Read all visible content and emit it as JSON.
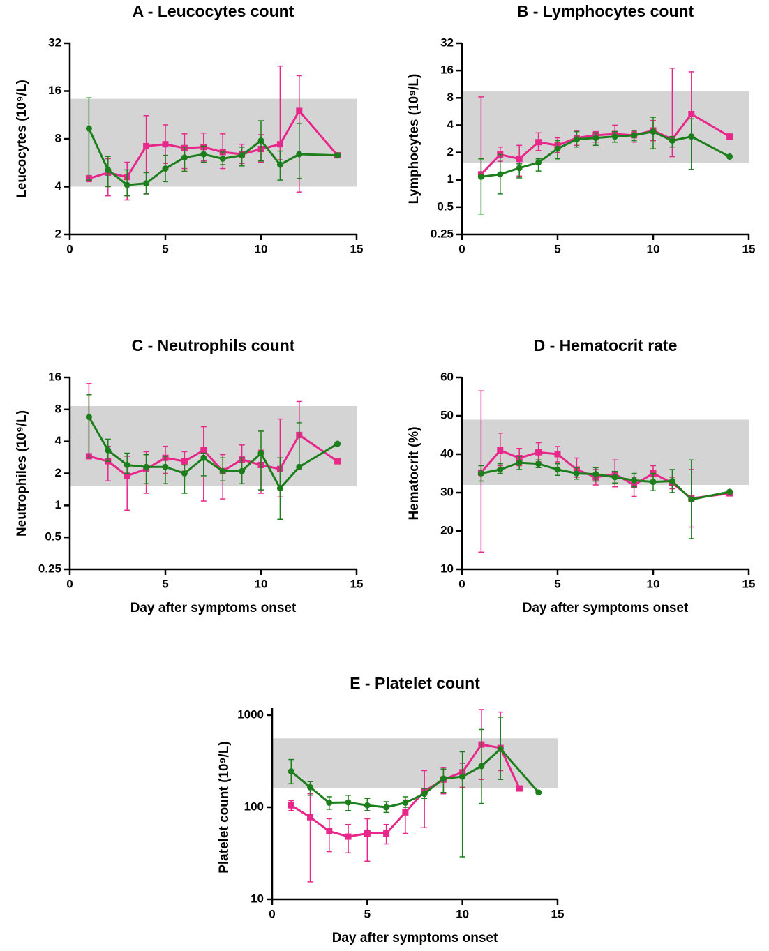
{
  "chart_data": [
    {
      "type": "line",
      "title": "A - Leucocytes count",
      "ylabel": "Leucocytes (10⁹/L)",
      "log_scale": true,
      "x": [
        1,
        2,
        3,
        4,
        5,
        6,
        7,
        8,
        9,
        10,
        11,
        12,
        14
      ],
      "xlim": [
        0,
        15
      ],
      "xticks": [
        0,
        5,
        10,
        15
      ],
      "ylim": [
        2,
        32
      ],
      "yticks": [
        2,
        4,
        8,
        16,
        32
      ],
      "band": [
        4,
        14.3
      ],
      "series": [
        {
          "color": "#e8278a",
          "marker": "square",
          "values": [
            4.5,
            4.9,
            4.6,
            7.2,
            7.4,
            7.0,
            7.1,
            6.6,
            6.4,
            6.9,
            7.4,
            12,
            6.3
          ],
          "error_low": [
            4.3,
            3.5,
            3.3,
            3.6,
            5.6,
            5.2,
            5.8,
            5.2,
            5.6,
            5.7,
            5.9,
            3.7,
            null
          ],
          "error_high": [
            4.7,
            6.0,
            5.7,
            11.2,
            9.8,
            8.6,
            8.7,
            8.6,
            7.4,
            8.5,
            23,
            20,
            null
          ]
        },
        {
          "color": "#1c7f1c",
          "marker": "circle",
          "values": [
            9.3,
            5.1,
            4.1,
            4.2,
            5.2,
            6.1,
            6.4,
            6.0,
            6.3,
            7.8,
            5.5,
            6.4,
            6.3
          ],
          "error_low": [
            4.4,
            4.0,
            3.5,
            3.6,
            4.3,
            5.0,
            5.7,
            5.5,
            5.4,
            5.8,
            4.4,
            4.5,
            null
          ],
          "error_high": [
            14.5,
            6.2,
            5.1,
            4.9,
            6.3,
            7.1,
            7.2,
            6.6,
            7.1,
            10.4,
            6.7,
            10,
            null
          ]
        }
      ]
    },
    {
      "type": "line",
      "title": "B - Lymphocytes count",
      "ylabel": "Lymphocytes (10⁹/L)",
      "log_scale": true,
      "x": [
        1,
        2,
        3,
        4,
        5,
        6,
        7,
        8,
        9,
        10,
        11,
        12,
        14
      ],
      "xlim": [
        0,
        15
      ],
      "xticks": [
        0,
        5,
        10,
        15
      ],
      "ylim": [
        0.25,
        32
      ],
      "yticks": [
        0.25,
        0.5,
        1,
        2,
        4,
        8,
        16,
        32
      ],
      "band": [
        1.53,
        9.5
      ],
      "series": [
        {
          "color": "#e8278a",
          "marker": "square",
          "values": [
            1.15,
            1.9,
            1.7,
            2.6,
            2.4,
            2.9,
            3.1,
            3.2,
            3.1,
            3.5,
            2.8,
            5.3,
            3.0
          ],
          "error_low": [
            1.1,
            1.6,
            1.1,
            2.1,
            2.0,
            2.4,
            2.6,
            2.6,
            2.6,
            2.7,
            1.8,
            1.3,
            null
          ],
          "error_high": [
            8.2,
            2.3,
            2.4,
            3.3,
            2.9,
            3.5,
            3.4,
            4.0,
            3.4,
            4.5,
            17,
            15.5,
            null
          ]
        },
        {
          "color": "#1c7f1c",
          "marker": "circle",
          "values": [
            1.08,
            1.15,
            1.35,
            1.55,
            2.2,
            2.8,
            2.9,
            3.0,
            3.1,
            3.4,
            2.7,
            3.0,
            1.8
          ],
          "error_low": [
            0.42,
            0.7,
            1.05,
            1.25,
            1.7,
            2.3,
            2.4,
            2.6,
            2.7,
            2.2,
            2.3,
            1.3,
            null
          ],
          "error_high": [
            1.7,
            1.9,
            1.5,
            1.7,
            2.7,
            3.4,
            3.3,
            3.4,
            3.5,
            4.9,
            3.0,
            4.7,
            null
          ]
        }
      ]
    },
    {
      "type": "line",
      "title": "C - Neutrophils count",
      "ylabel": "Neutrophiles (10⁹/L)",
      "xlabel": "Day after symptoms onset",
      "log_scale": true,
      "x": [
        1,
        2,
        3,
        4,
        5,
        6,
        7,
        8,
        9,
        10,
        11,
        12,
        14
      ],
      "xlim": [
        0,
        15
      ],
      "xticks": [
        0,
        5,
        10,
        15
      ],
      "ylim": [
        0.25,
        16
      ],
      "yticks": [
        0.25,
        0.5,
        1,
        2,
        4,
        8,
        16
      ],
      "band": [
        1.52,
        8.6
      ],
      "series": [
        {
          "color": "#e8278a",
          "marker": "square",
          "values": [
            2.9,
            2.6,
            1.9,
            2.2,
            2.8,
            2.6,
            3.3,
            2.1,
            2.7,
            2.4,
            2.2,
            4.6,
            2.6
          ],
          "error_low": [
            2.8,
            1.7,
            0.9,
            1.3,
            2.0,
            2.1,
            1.1,
            1.15,
            1.6,
            1.3,
            1.2,
            2.2,
            null
          ],
          "error_high": [
            14,
            3.6,
            2.9,
            3.2,
            3.6,
            3.2,
            5.5,
            3.0,
            3.7,
            3.3,
            6.5,
            9.5,
            null
          ]
        },
        {
          "color": "#1c7f1c",
          "marker": "circle",
          "values": [
            6.8,
            3.3,
            2.4,
            2.3,
            2.3,
            2.0,
            2.8,
            2.1,
            2.1,
            3.1,
            1.45,
            2.3,
            3.8
          ],
          "error_low": [
            2.8,
            2.6,
            2.0,
            1.6,
            1.6,
            1.3,
            1.9,
            1.7,
            1.6,
            1.4,
            0.74,
            2.2,
            null
          ],
          "error_high": [
            11,
            4.2,
            3.1,
            3.0,
            2.9,
            2.4,
            3.1,
            2.8,
            2.8,
            5.0,
            2.8,
            6.0,
            null
          ]
        }
      ]
    },
    {
      "type": "line",
      "title": "D - Hematocrit rate",
      "ylabel": "Hematocrit (%)",
      "xlabel": "Day after symptoms onset",
      "log_scale": false,
      "x": [
        1,
        2,
        3,
        4,
        5,
        6,
        7,
        8,
        9,
        10,
        11,
        12,
        14
      ],
      "xlim": [
        0,
        15
      ],
      "xticks": [
        0,
        5,
        10,
        15
      ],
      "ylim": [
        10,
        60
      ],
      "yticks": [
        10,
        20,
        30,
        40,
        50,
        60
      ],
      "band": [
        32,
        49
      ],
      "series": [
        {
          "color": "#e8278a",
          "marker": "square",
          "values": [
            35.2,
            41,
            39,
            40.5,
            40,
            36,
            34,
            34.8,
            32,
            35,
            32.5,
            28.5,
            29.8
          ],
          "error_low": [
            14.5,
            37,
            37,
            38,
            38,
            34,
            32,
            31.5,
            29,
            33,
            31,
            21,
            null
          ],
          "error_high": [
            56.5,
            45.5,
            41.5,
            43,
            42,
            39,
            36,
            38.5,
            34,
            37,
            34,
            36,
            null
          ]
        },
        {
          "color": "#1c7f1c",
          "marker": "circle",
          "values": [
            35,
            36,
            37.8,
            37.5,
            36,
            35,
            34.8,
            34,
            33.2,
            32.8,
            33,
            28.2,
            30.2
          ],
          "error_low": [
            33,
            35,
            36,
            36.5,
            34.5,
            33.5,
            33,
            32.5,
            31.5,
            30.5,
            30,
            18,
            null
          ],
          "error_high": [
            37,
            37.5,
            39.5,
            38.5,
            37.5,
            36.5,
            36.5,
            35.5,
            35,
            35,
            36,
            38.5,
            null
          ]
        }
      ]
    },
    {
      "type": "line",
      "title": "E - Platelet count",
      "ylabel": "Platelet count (10⁹/L)",
      "xlabel": "Day after symptoms onset",
      "log_scale": true,
      "xlim": [
        0,
        15
      ],
      "xticks": [
        0,
        5,
        10,
        15
      ],
      "ylim": [
        10,
        1000
      ],
      "yticks": [
        10,
        100,
        1000
      ],
      "band": [
        160,
        560
      ],
      "series": [
        {
          "color": "#e8278a",
          "marker": "square",
          "x": [
            1,
            2,
            3,
            4,
            5,
            6,
            7,
            8,
            9,
            10,
            11,
            12,
            13
          ],
          "values": [
            105,
            78,
            55,
            48,
            52,
            52,
            88,
            150,
            200,
            240,
            480,
            440,
            160
          ],
          "error_low": [
            92,
            15.5,
            33,
            32,
            26,
            40,
            52,
            60,
            140,
            165,
            200,
            250,
            null
          ],
          "error_high": [
            118,
            140,
            75,
            65,
            75,
            65,
            120,
            250,
            270,
            300,
            1150,
            1080,
            null
          ]
        },
        {
          "color": "#1c7f1c",
          "marker": "circle",
          "x": [
            1,
            2,
            3,
            4,
            5,
            6,
            7,
            8,
            9,
            10,
            11,
            12,
            14
          ],
          "values": [
            245,
            165,
            112,
            113,
            105,
            100,
            112,
            140,
            205,
            215,
            280,
            430,
            145
          ],
          "error_low": [
            180,
            135,
            95,
            92,
            92,
            88,
            100,
            125,
            145,
            29,
            110,
            200,
            null
          ],
          "error_high": [
            330,
            190,
            130,
            135,
            125,
            115,
            130,
            160,
            260,
            400,
            700,
            950,
            null
          ]
        }
      ]
    }
  ]
}
